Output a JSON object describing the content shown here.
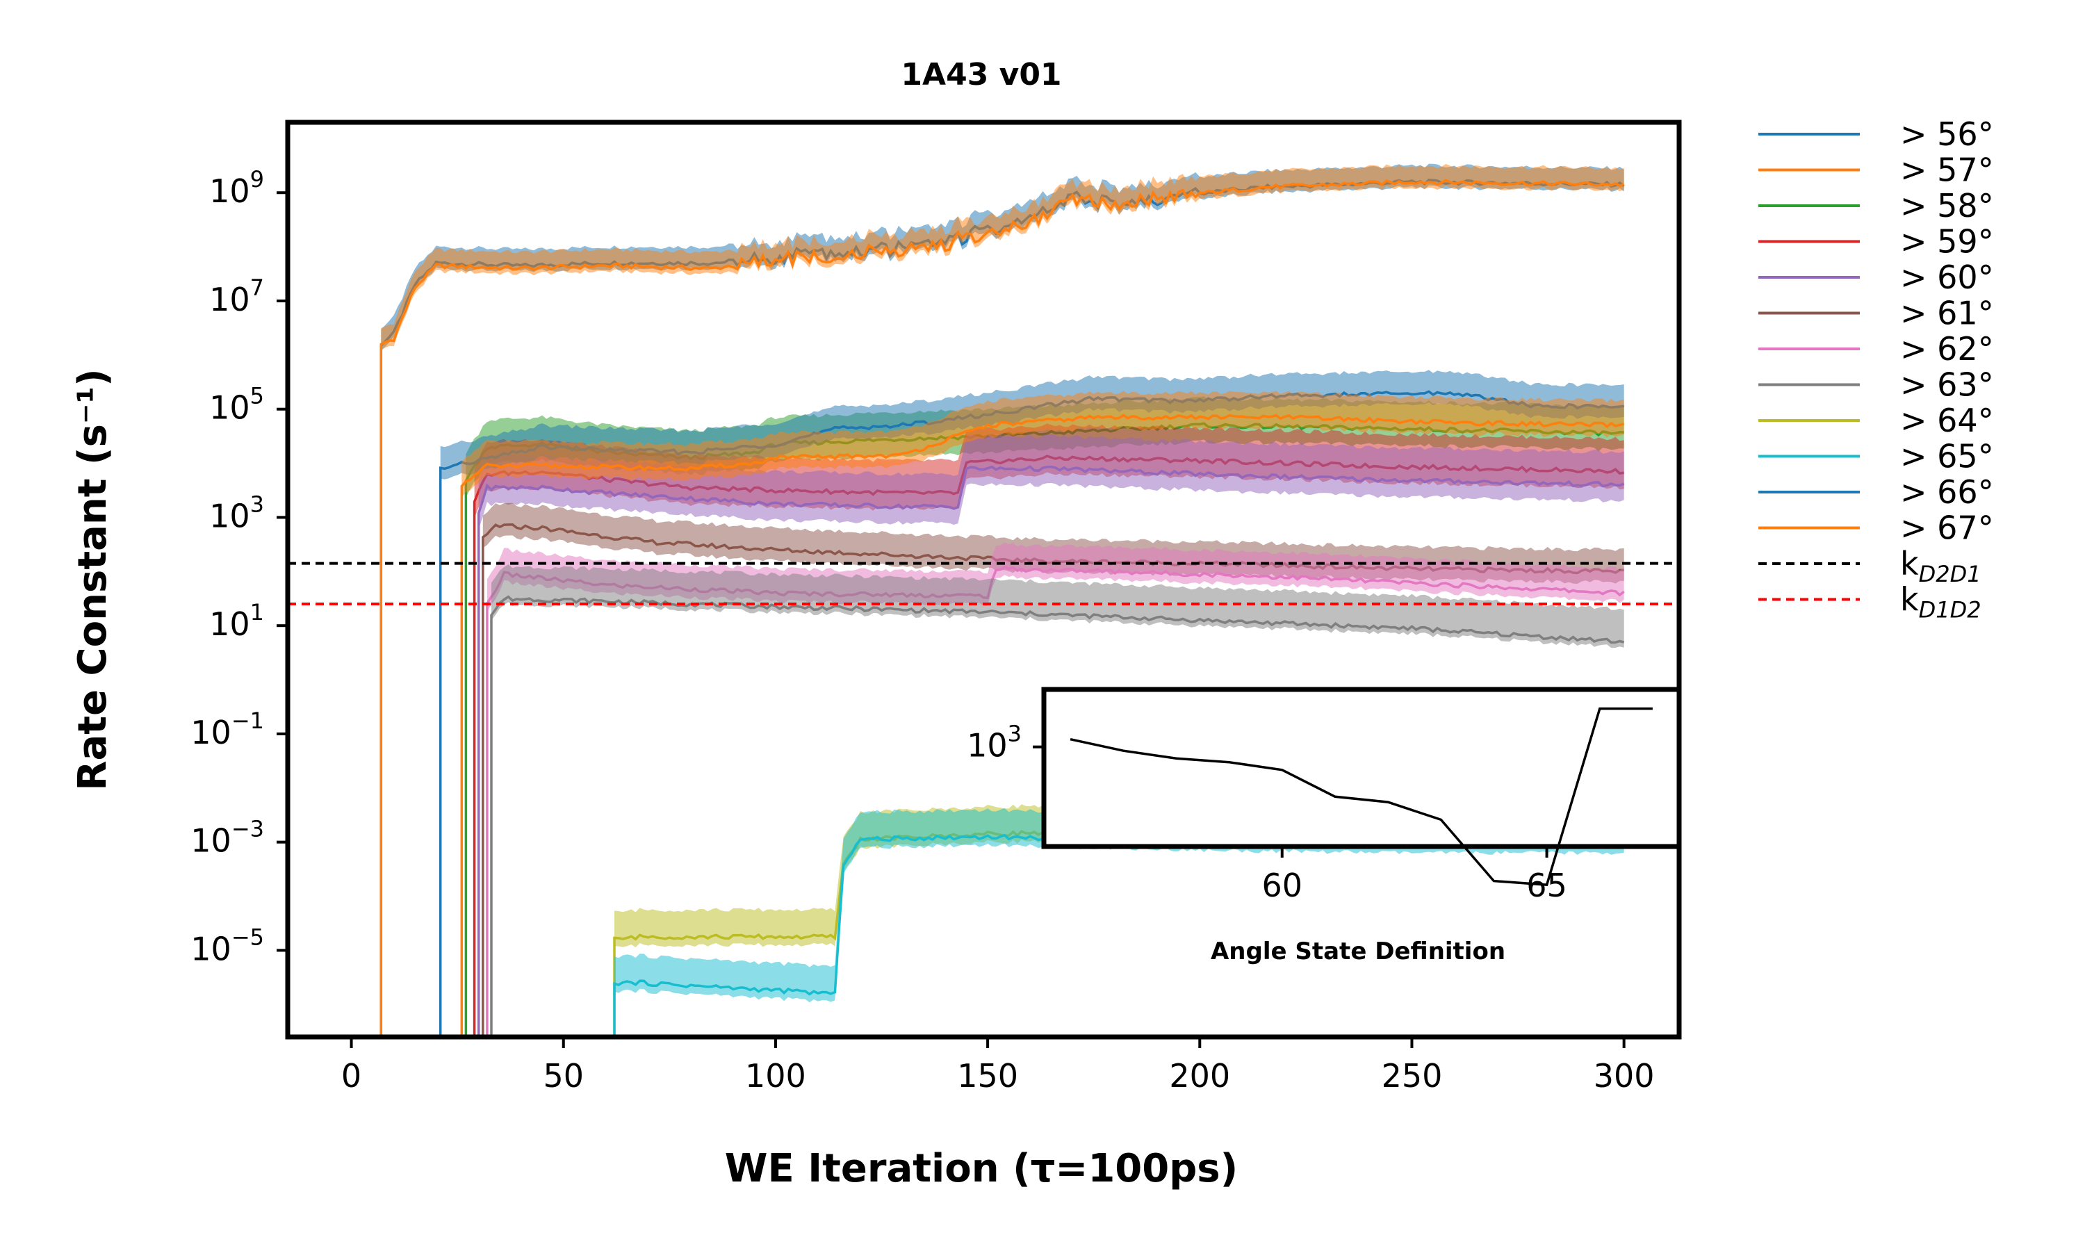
{
  "chart_data": [
    {
      "type": "line",
      "title": "1A43 v01",
      "xlabel": "WE Iteration (τ=100ps)",
      "ylabel": "Rate Constant (s⁻¹)",
      "xlim": [
        -15,
        313
      ],
      "ylim_log10": [
        -6.6,
        10.3
      ],
      "y_scale": "log",
      "x_ticks": [
        0,
        50,
        100,
        150,
        200,
        250,
        300
      ],
      "y_ticks_exponents": [
        -5,
        -3,
        -1,
        1,
        3,
        5,
        7,
        9
      ],
      "legend_position": "outside-right",
      "series": [
        {
          "name": "> 56°",
          "color": "#1f77b4",
          "start": 7,
          "points": [
            [
              7,
              6.2
            ],
            [
              10,
              6.4
            ],
            [
              15,
              7.3
            ],
            [
              20,
              7.7
            ],
            [
              40,
              7.65
            ],
            [
              60,
              7.7
            ],
            [
              85,
              7.7
            ],
            [
              100,
              7.8
            ],
            [
              120,
              7.9
            ],
            [
              140,
              8.1
            ],
            [
              160,
              8.5
            ],
            [
              170,
              8.9
            ],
            [
              185,
              8.8
            ],
            [
              195,
              8.95
            ],
            [
              215,
              9.1
            ],
            [
              250,
              9.2
            ],
            [
              300,
              9.15
            ]
          ],
          "band_up": 0.3,
          "band_dn": 0.1
        },
        {
          "name": "> 57°",
          "color": "#ff7f0e",
          "start": 7,
          "points": [
            [
              7,
              6.2
            ],
            [
              10,
              6.3
            ],
            [
              15,
              7.25
            ],
            [
              20,
              7.65
            ],
            [
              40,
              7.6
            ],
            [
              60,
              7.65
            ],
            [
              85,
              7.6
            ],
            [
              100,
              7.75
            ],
            [
              120,
              7.85
            ],
            [
              140,
              8.05
            ],
            [
              160,
              8.45
            ],
            [
              170,
              8.85
            ],
            [
              185,
              8.8
            ],
            [
              195,
              8.95
            ],
            [
              215,
              9.1
            ],
            [
              250,
              9.2
            ],
            [
              300,
              9.15
            ]
          ],
          "band_up": 0.3,
          "band_dn": 0.1
        },
        {
          "name": "> 58°",
          "color": "#2ca02c",
          "start": 27,
          "points": [
            [
              27,
              3.7
            ],
            [
              32,
              4.3
            ],
            [
              45,
              4.35
            ],
            [
              60,
              4.2
            ],
            [
              80,
              4.1
            ],
            [
              95,
              4.2
            ],
            [
              100,
              4.35
            ],
            [
              115,
              4.4
            ],
            [
              130,
              4.45
            ],
            [
              150,
              4.5
            ],
            [
              175,
              4.6
            ],
            [
              200,
              4.7
            ],
            [
              240,
              4.65
            ],
            [
              300,
              4.55
            ]
          ],
          "band_up": 0.5,
          "band_dn": 0.3
        },
        {
          "name": "> 59°",
          "color": "#d62728",
          "start": 29,
          "points": [
            [
              29,
              3.3
            ],
            [
              32,
              3.8
            ],
            [
              45,
              3.85
            ],
            [
              60,
              3.7
            ],
            [
              80,
              3.55
            ],
            [
              100,
              3.5
            ],
            [
              130,
              3.45
            ],
            [
              143,
              3.45
            ],
            [
              145,
              4.0
            ],
            [
              165,
              4.1
            ],
            [
              200,
              4.05
            ],
            [
              240,
              3.95
            ],
            [
              300,
              3.85
            ]
          ],
          "band_up": 0.6,
          "band_dn": 0.3
        },
        {
          "name": "> 60°",
          "color": "#9467bd",
          "start": 30,
          "points": [
            [
              30,
              3.1
            ],
            [
              32,
              3.55
            ],
            [
              45,
              3.55
            ],
            [
              60,
              3.45
            ],
            [
              80,
              3.35
            ],
            [
              100,
              3.25
            ],
            [
              130,
              3.2
            ],
            [
              143,
              3.2
            ],
            [
              145,
              3.9
            ],
            [
              165,
              3.9
            ],
            [
              200,
              3.8
            ],
            [
              240,
              3.7
            ],
            [
              300,
              3.6
            ]
          ],
          "band_up": 0.6,
          "band_dn": 0.3
        },
        {
          "name": "> 61°",
          "color": "#8c564b",
          "start": 31,
          "points": [
            [
              31,
              2.6
            ],
            [
              34,
              2.85
            ],
            [
              45,
              2.8
            ],
            [
              70,
              2.55
            ],
            [
              100,
              2.4
            ],
            [
              130,
              2.3
            ],
            [
              160,
              2.2
            ],
            [
              200,
              2.15
            ],
            [
              250,
              2.05
            ],
            [
              300,
              2.0
            ]
          ],
          "band_up": 0.4,
          "band_dn": 0.2
        },
        {
          "name": "> 62°",
          "color": "#e377c2",
          "start": 32,
          "points": [
            [
              32,
              1.4
            ],
            [
              36,
              1.95
            ],
            [
              60,
              1.75
            ],
            [
              100,
              1.6
            ],
            [
              150,
              1.55
            ],
            [
              152,
              2.05
            ],
            [
              180,
              2.0
            ],
            [
              220,
              1.9
            ],
            [
              260,
              1.75
            ],
            [
              300,
              1.6
            ]
          ],
          "band_up": 0.45,
          "band_dn": 0.15
        },
        {
          "name": "> 63°",
          "color": "#7f7f7f",
          "start": 33,
          "points": [
            [
              33,
              1.2
            ],
            [
              36,
              1.5
            ],
            [
              60,
              1.45
            ],
            [
              100,
              1.35
            ],
            [
              150,
              1.25
            ],
            [
              200,
              1.1
            ],
            [
              250,
              0.95
            ],
            [
              300,
              0.7
            ]
          ],
          "band_up": 0.6,
          "band_dn": 0.1
        },
        {
          "name": "> 64°",
          "color": "#bcbd22",
          "start": 62,
          "points": [
            [
              62,
              -4.8
            ],
            [
              68,
              -4.75
            ],
            [
              100,
              -4.75
            ],
            [
              114,
              -4.75
            ],
            [
              116,
              -3.4
            ],
            [
              120,
              -2.95
            ],
            [
              150,
              -2.85
            ],
            [
              200,
              -2.75
            ],
            [
              250,
              -2.7
            ],
            [
              300,
              -2.6
            ]
          ],
          "band_up": 0.5,
          "band_dn": 0.15
        },
        {
          "name": "> 65°",
          "color": "#17becf",
          "start": 62,
          "points": [
            [
              62,
              -5.6
            ],
            [
              68,
              -5.6
            ],
            [
              114,
              -5.8
            ],
            [
              116,
              -3.4
            ],
            [
              120,
              -2.95
            ],
            [
              150,
              -2.9
            ],
            [
              200,
              -3.0
            ],
            [
              250,
              -3.05
            ],
            [
              300,
              -3.05
            ]
          ],
          "band_up": 0.5,
          "band_dn": 0.15
        },
        {
          "name": "> 66°",
          "color": "#1f77b4",
          "start": 21,
          "points": [
            [
              21,
              3.9
            ],
            [
              30,
              4.05
            ],
            [
              45,
              4.3
            ],
            [
              60,
              4.25
            ],
            [
              80,
              4.2
            ],
            [
              100,
              4.35
            ],
            [
              115,
              4.65
            ],
            [
              130,
              4.7
            ],
            [
              150,
              4.9
            ],
            [
              175,
              5.2
            ],
            [
              195,
              5.15
            ],
            [
              220,
              5.25
            ],
            [
              260,
              5.3
            ],
            [
              280,
              5.05
            ],
            [
              300,
              5.05
            ]
          ],
          "band_up": 0.4,
          "band_dn": 0.2
        },
        {
          "name": "> 67°",
          "color": "#ff7f0e",
          "start": 26,
          "points": [
            [
              26,
              3.6
            ],
            [
              32,
              3.95
            ],
            [
              45,
              3.95
            ],
            [
              80,
              3.9
            ],
            [
              95,
              4.0
            ],
            [
              100,
              4.1
            ],
            [
              130,
              4.15
            ],
            [
              150,
              4.7
            ],
            [
              175,
              4.85
            ],
            [
              220,
              4.85
            ],
            [
              260,
              4.75
            ],
            [
              300,
              4.7
            ]
          ],
          "band_up": 0.45,
          "band_dn": 0.2
        },
        {
          "name": "kD2D1",
          "color": "#000000",
          "dashed": true,
          "constant_log10": 2.15
        },
        {
          "name": "kD1D2",
          "color": "#ff0000",
          "dashed": true,
          "constant_log10": 1.4
        }
      ]
    },
    {
      "type": "line",
      "title": "",
      "xlabel": "Angle State Definition",
      "ylabel": "",
      "y_scale": "log",
      "x_ticks": [
        60,
        65
      ],
      "y_ticks_exponents": [
        3
      ],
      "xlim": [
        55.5,
        67.5
      ],
      "ylim_log10": [
        1.7,
        3.75
      ],
      "series": [
        {
          "name": "",
          "color": "#000000",
          "x": [
            56,
            57,
            58,
            59,
            60,
            61,
            62,
            63,
            64,
            65,
            66,
            67
          ],
          "y_log10": [
            3.1,
            2.95,
            2.85,
            2.8,
            2.7,
            2.35,
            2.28,
            2.05,
            1.25,
            1.2,
            3.5,
            3.5
          ]
        }
      ]
    }
  ],
  "labels": {
    "kD2D1_main": "k",
    "kD2D1_sub": "D2D1",
    "kD1D2_main": "k",
    "kD1D2_sub": "D1D2"
  }
}
